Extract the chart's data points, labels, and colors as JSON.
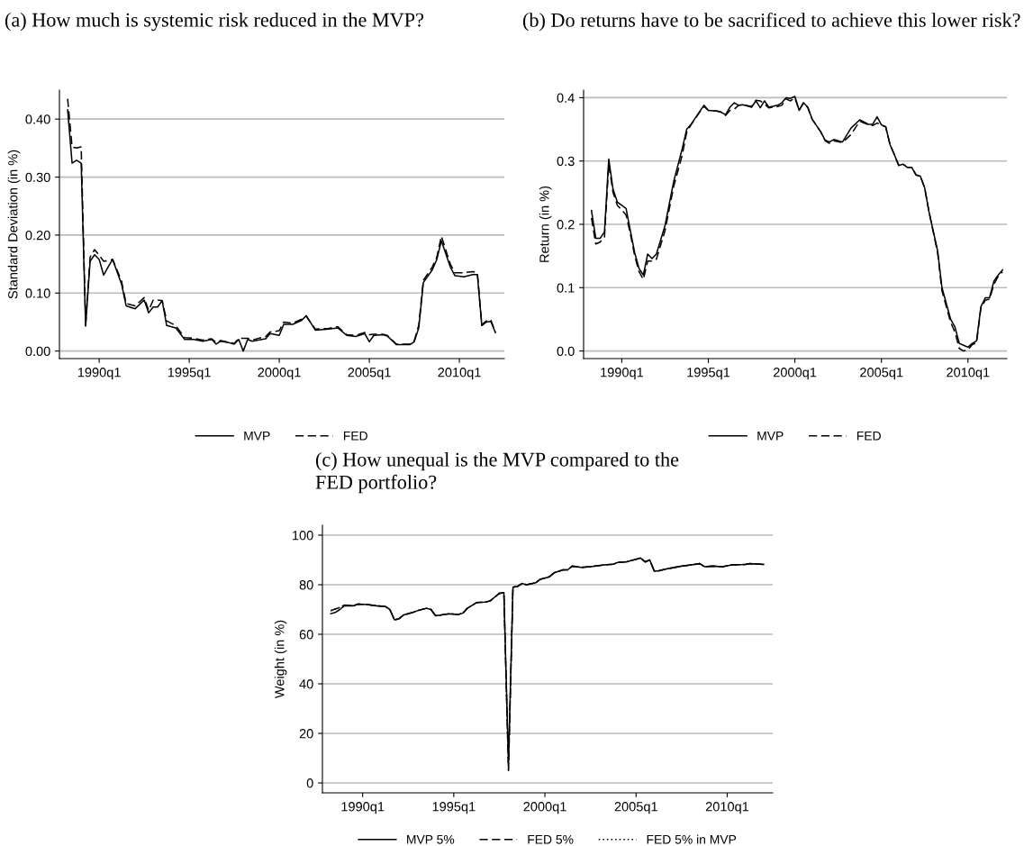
{
  "chart_data": [
    {
      "type": "line",
      "title": "(a) How much is systemic risk reduced in the MVP?",
      "ylabel": "Standard Deviation (in %)",
      "legend": "bottom",
      "grid": "y",
      "x": [
        "1988-04",
        "1988-07",
        "1988-10",
        "1989-01",
        "1989-04",
        "1989-07",
        "1989-10",
        "1990-01",
        "1990-04",
        "1990-07",
        "1990-10",
        "1991-04",
        "1991-07",
        "1992-01",
        "1992-07",
        "1992-10",
        "1993-01",
        "1993-04",
        "1993-07",
        "1993-10",
        "1994-04",
        "1994-10",
        "1995-04",
        "1995-10",
        "1996-04",
        "1996-07",
        "1996-10",
        "1997-04",
        "1997-07",
        "1997-10",
        "1998-01",
        "1998-04",
        "1998-07",
        "1999-04",
        "1999-07",
        "2000-01",
        "2000-04",
        "2000-10",
        "2001-04",
        "2001-07",
        "2002-01",
        "2002-10",
        "2003-04",
        "2003-10",
        "2004-04",
        "2004-10",
        "2005-01",
        "2005-04",
        "2005-10",
        "2006-01",
        "2006-07",
        "2007-04",
        "2007-07",
        "2007-10",
        "2008-01",
        "2008-07",
        "2008-10",
        "2009-01",
        "2009-07",
        "2009-10",
        "2010-04",
        "2010-10",
        "2011-01",
        "2011-04",
        "2011-07",
        "2011-10",
        "2012-01"
      ],
      "xlim": [
        "1987-10-18",
        "2012-07-01"
      ],
      "xticks": [
        {
          "value": "1990-01",
          "label": "1990q1"
        },
        {
          "value": "1995-01",
          "label": "1995q1"
        },
        {
          "value": "2000-01",
          "label": "2000q1"
        },
        {
          "value": "2005-01",
          "label": "2005q1"
        },
        {
          "value": "2010-01",
          "label": "2010q1"
        }
      ],
      "ylim": [
        -0.013,
        0.45
      ],
      "yticks": [
        {
          "value": 0,
          "label": "0.00"
        },
        {
          "value": 0.1,
          "label": "0.10"
        },
        {
          "value": 0.2,
          "label": "0.20"
        },
        {
          "value": 0.3,
          "label": "0.30"
        },
        {
          "value": 0.4,
          "label": "0.40"
        }
      ],
      "series": [
        {
          "name": "MVP",
          "color": "#000000",
          "line_style": "solid",
          "values": [
            0.416,
            0.324,
            0.329,
            0.324,
            0.043,
            0.155,
            0.166,
            0.158,
            0.131,
            0.145,
            0.158,
            0.115,
            0.078,
            0.073,
            0.088,
            0.066,
            0.076,
            0.076,
            0.087,
            0.044,
            0.04,
            0.02,
            0.02,
            0.017,
            0.02,
            0.012,
            0.017,
            0.014,
            0.012,
            0.02,
            0.0,
            0.02,
            0.017,
            0.021,
            0.03,
            0.027,
            0.046,
            0.046,
            0.053,
            0.061,
            0.036,
            0.038,
            0.04,
            0.027,
            0.025,
            0.03,
            0.016,
            0.027,
            0.028,
            0.026,
            0.011,
            0.011,
            0.016,
            0.04,
            0.118,
            0.14,
            0.158,
            0.19,
            0.145,
            0.13,
            0.128,
            0.132,
            0.132,
            0.044,
            0.05,
            0.051,
            0.032
          ]
        },
        {
          "name": "FED",
          "color": "#000000",
          "line_style": "dashed",
          "values": [
            0.435,
            0.352,
            0.35,
            0.352,
            0.045,
            0.162,
            0.175,
            0.165,
            0.155,
            0.156,
            0.158,
            0.12,
            0.082,
            0.078,
            0.092,
            0.07,
            0.088,
            0.088,
            0.087,
            0.052,
            0.044,
            0.023,
            0.022,
            0.019,
            0.021,
            0.015,
            0.018,
            0.015,
            0.013,
            0.022,
            0.022,
            0.022,
            0.019,
            0.025,
            0.033,
            0.035,
            0.05,
            0.048,
            0.055,
            0.06,
            0.038,
            0.039,
            0.042,
            0.028,
            0.027,
            0.032,
            0.028,
            0.029,
            0.029,
            0.027,
            0.012,
            0.012,
            0.018,
            0.045,
            0.122,
            0.145,
            0.162,
            0.198,
            0.15,
            0.135,
            0.135,
            0.137,
            0.135,
            0.045,
            0.052,
            0.054,
            0.032
          ]
        }
      ]
    },
    {
      "type": "line",
      "title": "(b) Do returns have to be sacrificed to achieve this lower risk?",
      "ylabel": "Return (in %)",
      "legend": "bottom",
      "grid": "y",
      "x": [
        "1988-04",
        "1988-07",
        "1988-10",
        "1989-01",
        "1989-04",
        "1989-07",
        "1989-10",
        "1990-04",
        "1990-07",
        "1990-10",
        "1991-01",
        "1991-04",
        "1991-07",
        "1991-10",
        "1992-01",
        "1992-07",
        "1993-01",
        "1993-07",
        "1993-10",
        "1994-01",
        "1994-07",
        "1994-10",
        "1995-01",
        "1995-07",
        "1995-10",
        "1996-01",
        "1996-04",
        "1996-07",
        "1996-10",
        "1997-01",
        "1997-07",
        "1997-10",
        "1998-01",
        "1998-04",
        "1998-07",
        "1999-01",
        "1999-04",
        "1999-07",
        "1999-10",
        "2000-01",
        "2000-04",
        "2000-07",
        "2000-10",
        "2001-01",
        "2001-07",
        "2001-10",
        "2002-01",
        "2002-04",
        "2002-10",
        "2003-04",
        "2003-10",
        "2004-04",
        "2004-07",
        "2004-10",
        "2005-01",
        "2005-04",
        "2005-07",
        "2005-10",
        "2006-01",
        "2006-04",
        "2006-07",
        "2006-10",
        "2007-01",
        "2007-04",
        "2007-07",
        "2007-10",
        "2008-04",
        "2008-07",
        "2009-01",
        "2009-04",
        "2009-07",
        "2009-10",
        "2010-01",
        "2010-04",
        "2010-07",
        "2010-10",
        "2011-01",
        "2011-04",
        "2011-07",
        "2011-10",
        "2012-01"
      ],
      "xlim": [
        "1987-10-18",
        "2012-04-01"
      ],
      "xticks": [
        {
          "value": "1990-01",
          "label": "1990q1"
        },
        {
          "value": "1995-01",
          "label": "1995q1"
        },
        {
          "value": "2000-01",
          "label": "2000q1"
        },
        {
          "value": "2005-01",
          "label": "2005q1"
        },
        {
          "value": "2010-01",
          "label": "2010q1"
        }
      ],
      "ylim": [
        -0.012,
        0.412
      ],
      "yticks": [
        {
          "value": 0,
          "label": "0.0"
        },
        {
          "value": 0.1,
          "label": "0.1"
        },
        {
          "value": 0.2,
          "label": "0.2"
        },
        {
          "value": 0.3,
          "label": "0.3"
        },
        {
          "value": 0.4,
          "label": "0.4"
        }
      ],
      "series": [
        {
          "name": "MVP",
          "color": "#000000",
          "line_style": "solid",
          "values": [
            0.222,
            0.178,
            0.178,
            0.188,
            0.303,
            0.255,
            0.235,
            0.225,
            0.19,
            0.155,
            0.13,
            0.12,
            0.153,
            0.146,
            0.153,
            0.198,
            0.268,
            0.32,
            0.35,
            0.358,
            0.378,
            0.388,
            0.38,
            0.379,
            0.377,
            0.373,
            0.385,
            0.392,
            0.388,
            0.389,
            0.385,
            0.395,
            0.384,
            0.395,
            0.385,
            0.388,
            0.392,
            0.4,
            0.399,
            0.402,
            0.38,
            0.392,
            0.385,
            0.366,
            0.346,
            0.333,
            0.33,
            0.334,
            0.33,
            0.352,
            0.365,
            0.358,
            0.358,
            0.37,
            0.357,
            0.354,
            0.326,
            0.31,
            0.293,
            0.295,
            0.29,
            0.29,
            0.278,
            0.276,
            0.258,
            0.22,
            0.158,
            0.1,
            0.05,
            0.038,
            0.012,
            0.009,
            0.006,
            0.012,
            0.016,
            0.07,
            0.084,
            0.084,
            0.11,
            0.12,
            0.128
          ]
        },
        {
          "name": "FED",
          "color": "#000000",
          "line_style": "dashed",
          "values": [
            0.21,
            0.169,
            0.172,
            0.18,
            0.295,
            0.25,
            0.23,
            0.215,
            0.185,
            0.15,
            0.125,
            0.113,
            0.142,
            0.142,
            0.145,
            0.19,
            0.26,
            0.31,
            0.345,
            0.357,
            0.377,
            0.386,
            0.38,
            0.379,
            0.377,
            0.372,
            0.38,
            0.382,
            0.388,
            0.389,
            0.386,
            0.396,
            0.395,
            0.39,
            0.384,
            0.386,
            0.388,
            0.398,
            0.395,
            0.4,
            0.38,
            0.392,
            0.384,
            0.366,
            0.346,
            0.332,
            0.328,
            0.332,
            0.329,
            0.342,
            0.363,
            0.357,
            0.356,
            0.36,
            0.357,
            0.354,
            0.326,
            0.31,
            0.293,
            0.295,
            0.29,
            0.29,
            0.278,
            0.276,
            0.258,
            0.22,
            0.155,
            0.095,
            0.045,
            0.03,
            0.004,
            0.0,
            0.002,
            0.01,
            0.013,
            0.068,
            0.08,
            0.082,
            0.105,
            0.118,
            0.125
          ]
        }
      ]
    },
    {
      "type": "line",
      "title": "(c) How unequal is the MVP compared to the FED portfolio?",
      "ylabel": "Weight (in %)",
      "legend": "bottom",
      "grid": "y",
      "x": [
        "1988-04",
        "1988-07",
        "1988-10",
        "1989-01",
        "1989-07",
        "1989-10",
        "1990-04",
        "1990-10",
        "1991-04",
        "1991-07",
        "1991-10",
        "1992-01",
        "1992-04",
        "1992-10",
        "1993-01",
        "1993-07",
        "1993-10",
        "1994-01",
        "1994-04",
        "1994-10",
        "1995-04",
        "1995-07",
        "1995-10",
        "1996-04",
        "1996-10",
        "1997-01",
        "1997-04",
        "1997-07",
        "1997-10",
        "1998-01",
        "1998-04",
        "1998-07",
        "1998-10",
        "1999-01",
        "1999-07",
        "1999-10",
        "2000-04",
        "2000-07",
        "2001-01",
        "2001-04",
        "2001-07",
        "2002-01",
        "2002-07",
        "2003-04",
        "2003-10",
        "2004-01",
        "2004-07",
        "2005-01",
        "2005-04",
        "2005-07",
        "2005-10",
        "2006-01",
        "2006-04",
        "2006-10",
        "2007-07",
        "2008-01",
        "2008-07",
        "2008-10",
        "2009-04",
        "2009-10",
        "2010-04",
        "2011-01",
        "2011-04",
        "2012-01"
      ],
      "xlim": [
        "1987-10-18",
        "2012-07-01"
      ],
      "xticks": [
        {
          "value": "1990-01",
          "label": "1990q1"
        },
        {
          "value": "1995-01",
          "label": "1995q1"
        },
        {
          "value": "2000-01",
          "label": "2000q1"
        },
        {
          "value": "2005-01",
          "label": "2005q1"
        },
        {
          "value": "2010-01",
          "label": "2010q1"
        }
      ],
      "ylim": [
        -4,
        104
      ],
      "yticks": [
        0,
        20,
        40,
        60,
        80,
        100
      ],
      "series": [
        {
          "name": "MVP 5%",
          "color": "#000000",
          "line_style": "solid",
          "values": [
            68.3,
            68.8,
            70,
            71.5,
            71.5,
            72.2,
            72,
            71.5,
            71.2,
            70,
            65.8,
            66.3,
            67.8,
            68.8,
            69.5,
            70.5,
            70,
            67.5,
            67.7,
            68.3,
            68,
            68.5,
            70.5,
            72.8,
            73,
            73.5,
            75,
            76.5,
            76.8,
            8,
            79,
            79.3,
            80.5,
            80,
            80.8,
            82.2,
            83.2,
            84.8,
            86,
            86,
            87.5,
            87,
            87.3,
            88,
            88.3,
            89,
            89.3,
            90.3,
            90.8,
            89.2,
            90,
            85.5,
            85.6,
            86.5,
            87.5,
            88,
            88.5,
            87.3,
            87.5,
            87.3,
            88,
            88.2,
            88.5,
            88.2
          ]
        },
        {
          "name": "FED 5%",
          "color": "#000000",
          "line_style": "dashed",
          "values": [
            69.5,
            70.2,
            70.8,
            71.8,
            71.5,
            72.2,
            72,
            71.5,
            71.2,
            70,
            65.8,
            66.3,
            67.8,
            68.8,
            69.5,
            70.5,
            70,
            67.5,
            67.7,
            68.3,
            68,
            68.5,
            70.5,
            72.8,
            73,
            73.5,
            75,
            76.5,
            76.8,
            5,
            79,
            79.3,
            80.5,
            80,
            80.8,
            82.2,
            83.2,
            84.8,
            86,
            86,
            87.5,
            87,
            87.3,
            88,
            88.3,
            89,
            89.3,
            90.3,
            90.8,
            89.2,
            90,
            85.5,
            85.6,
            86.5,
            87.5,
            88,
            88.5,
            87.3,
            87.5,
            87.3,
            88,
            88.2,
            88.5,
            88.2
          ]
        },
        {
          "name": "FED 5% in MVP",
          "color": "#000000",
          "line_style": "dotted",
          "values": [
            69.5,
            70.2,
            70.8,
            71.8,
            71.5,
            72.2,
            72,
            71.5,
            71.2,
            70,
            65.8,
            66.3,
            67.8,
            68.8,
            69.5,
            70.5,
            70,
            67.5,
            67.7,
            68.3,
            68,
            68.5,
            70.5,
            72.8,
            73,
            73.5,
            75,
            76.5,
            76.8,
            5,
            79,
            79.3,
            80.5,
            80,
            80.8,
            82.2,
            83.2,
            84.8,
            86,
            86,
            87.5,
            87,
            87.3,
            88,
            88.3,
            89,
            89.3,
            90.3,
            90.8,
            89.2,
            90,
            85.5,
            85.6,
            86.5,
            87.5,
            88,
            88.5,
            87.3,
            87.5,
            87.3,
            88,
            88.2,
            88.5,
            88.2
          ]
        }
      ]
    }
  ]
}
